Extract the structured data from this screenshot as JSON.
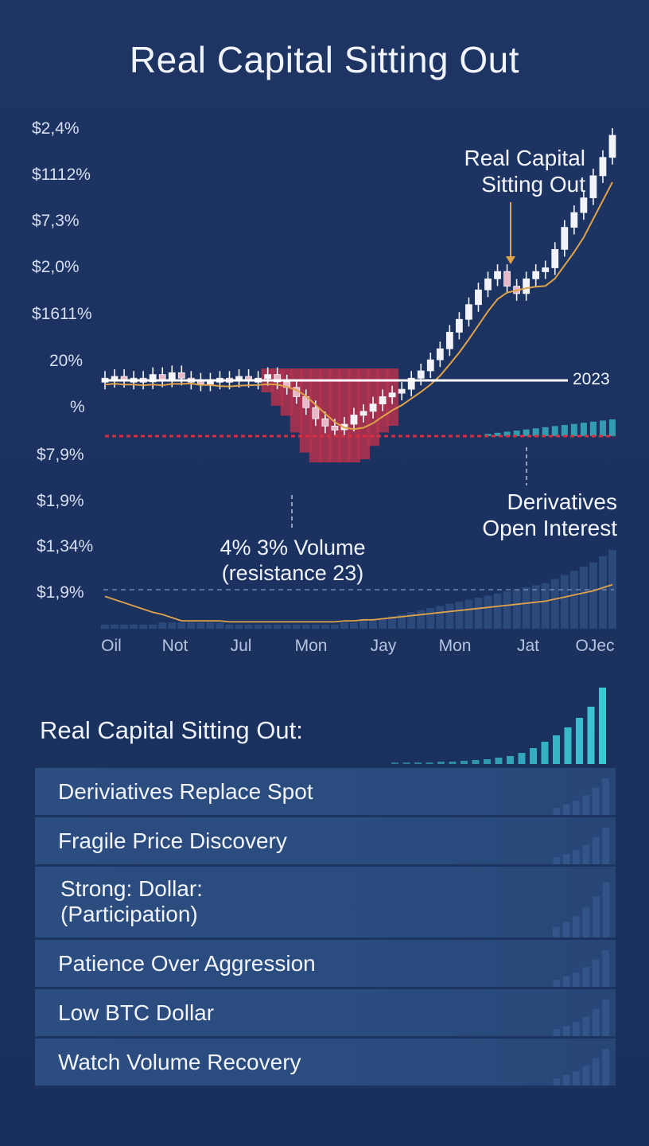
{
  "title": "Real Capital Sitting Out",
  "chart_data": {
    "type": "candlestick",
    "y_tick_labels": [
      "$2,4%",
      "$1112%",
      "$7,3%",
      "$2,0%",
      "$1611%",
      "20%",
      "%",
      "$7,9%",
      "$1,9%",
      "$1,34%",
      "$1,9%"
    ],
    "x_tick_labels": [
      "Oil",
      "Not",
      "Jul",
      "Mon",
      "Jay",
      "Mon",
      "Jat",
      "OJec"
    ],
    "reference_line_label": "2023",
    "annotations": [
      {
        "text_lines": [
          "Real Capital",
          "Sitting Out"
        ]
      },
      {
        "text_lines": [
          "Derivatives",
          "Open Interest"
        ]
      },
      {
        "text_lines": [
          "4% 3% Volume",
          "(resistance 23)"
        ]
      }
    ],
    "price": [
      80,
      81,
      79,
      80,
      78,
      82,
      79,
      83,
      80,
      79,
      78,
      79,
      80,
      79,
      81,
      79,
      80,
      82,
      78,
      75,
      70,
      64,
      58,
      54,
      52,
      55,
      60,
      62,
      66,
      70,
      72,
      74,
      80,
      84,
      90,
      96,
      105,
      112,
      120,
      128,
      134,
      138,
      130,
      126,
      134,
      138,
      140,
      150,
      162,
      170,
      178,
      190,
      200,
      212
    ],
    "derivatives_oi": [
      10,
      10,
      10,
      10,
      10,
      10,
      10,
      10,
      10,
      10,
      10,
      10,
      10,
      10,
      10,
      10,
      10,
      10,
      10,
      10,
      10,
      10,
      10,
      10,
      10,
      10,
      10,
      10,
      10,
      10,
      10,
      10,
      10,
      10,
      10,
      10,
      10,
      11,
      11,
      12,
      12,
      13,
      13,
      14,
      14,
      15,
      16,
      17,
      18,
      19,
      20,
      22,
      24,
      26
    ],
    "volume": [
      2,
      2,
      2,
      2,
      2,
      2,
      3,
      3,
      3,
      3,
      3,
      3,
      3,
      2,
      2,
      2,
      2,
      2,
      2,
      2,
      2,
      2,
      2,
      2,
      2,
      3,
      3,
      4,
      4,
      5,
      6,
      7,
      8,
      9,
      10,
      11,
      12,
      13,
      14,
      15,
      16,
      17,
      18,
      19,
      20,
      21,
      22,
      24,
      26,
      28,
      30,
      32,
      35,
      38
    ]
  },
  "section_title": "Real Capital Sitting Out:",
  "takeaways": [
    "Deriviatives Replace Spot",
    "Fragile Price Discovery",
    "Strong: Dollar:",
    "(Participation)",
    "Patience Over Aggression",
    "Low BTC Dollar",
    "Watch Volume Recovery"
  ],
  "colors": {
    "background": "#1e3563",
    "candle": "#f2f4fa",
    "trend_line": "#e0a34a",
    "red_bars": "#b3324e",
    "oi_line": "#d8303e",
    "teal": "#3cc9d6",
    "reference_line": "#ffffff"
  }
}
